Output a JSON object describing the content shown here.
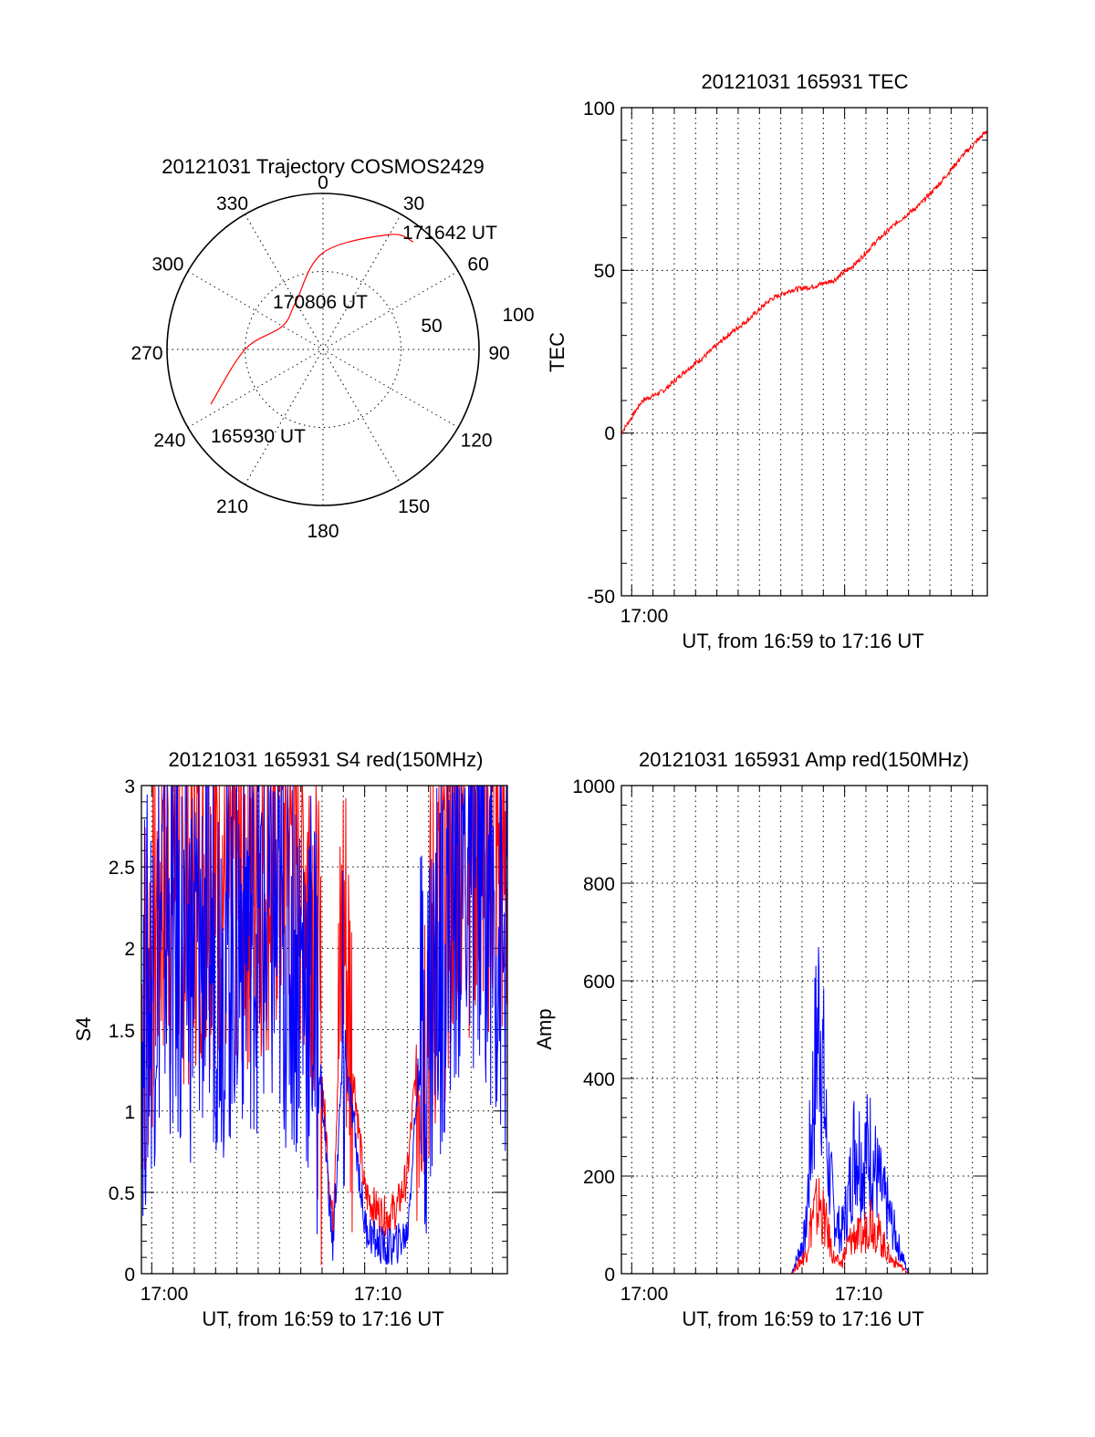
{
  "colors": {
    "red": "#ff0000",
    "blue": "#0000ff",
    "axis": "#000000"
  },
  "chart_data": [
    {
      "type": "polar",
      "title": "20121031 Trajectory COSMOS2429",
      "angle_labels": [
        "0",
        "30",
        "60",
        "90",
        "120",
        "150",
        "180",
        "210",
        "240",
        "270",
        "300",
        "330"
      ],
      "radius_labels": [
        "50",
        "100"
      ],
      "rlim": [
        0,
        100
      ],
      "annotations": [
        "171642 UT",
        "170806 UT",
        "165930 UT"
      ],
      "series": [
        {
          "color": "#ff0000",
          "points": [
            [
              244,
              80
            ],
            [
              270,
              50
            ],
            [
              300,
              30
            ],
            [
              330,
              35
            ],
            [
              0,
              62
            ],
            [
              30,
              85
            ],
            [
              40,
              90
            ]
          ]
        }
      ]
    },
    {
      "type": "line",
      "title": "20121031 165931 TEC",
      "xlabel": "UT, from 16:59 to 17:16 UT",
      "ylabel": "TEC",
      "xlim": [
        "16:59:31",
        "17:16:42"
      ],
      "ylim": [
        -50,
        100
      ],
      "yticks": [
        "100",
        "50",
        "0",
        "-50"
      ],
      "xticks": [
        "17:00"
      ],
      "grid": true,
      "series": [
        {
          "color": "#ff0000",
          "x": [
            "16:59:31",
            "17:00:30",
            "17:01:30",
            "17:02:30",
            "17:03:30",
            "17:04:30",
            "17:05:30",
            "17:06:30",
            "17:07:30",
            "17:08:30",
            "17:09:30",
            "17:10:30",
            "17:11:30",
            "17:12:30",
            "17:13:30",
            "17:14:30",
            "17:15:30",
            "17:16:42"
          ],
          "y": [
            0,
            10,
            13,
            19,
            24,
            30,
            35,
            41,
            44,
            45,
            47,
            52,
            59,
            65,
            70,
            77,
            85,
            93
          ]
        }
      ]
    },
    {
      "type": "line",
      "title": "20121031 165931 S4 red(150MHz)",
      "xlabel": "UT, from 16:59 to 17:16 UT",
      "ylabel": "S4",
      "xlim": [
        "16:59:31",
        "17:16:42"
      ],
      "ylim": [
        0,
        3
      ],
      "yticks": [
        "3",
        "2.5",
        "2",
        "1.5",
        "1",
        "0.5",
        "0"
      ],
      "xticks": [
        "17:00",
        "17:10"
      ],
      "grid": true,
      "series": [
        {
          "color": "#ff0000",
          "x": [
            "16:59:31",
            "17:00:30",
            "17:01:30",
            "17:02:30",
            "17:03:30",
            "17:04:30",
            "17:05:30",
            "17:06:30",
            "17:07:30",
            "17:08:00",
            "17:08:30",
            "17:09:00",
            "17:09:30",
            "17:10:00",
            "17:10:30",
            "17:11:00",
            "17:11:30",
            "17:12:00",
            "17:12:30",
            "17:13:30",
            "17:14:30",
            "17:15:30",
            "17:16:42"
          ],
          "y": [
            1.6,
            2.5,
            2.4,
            2.6,
            2.4,
            2.5,
            2.6,
            2.7,
            2.5,
            1.2,
            0.3,
            2.2,
            1.2,
            0.5,
            0.4,
            0.35,
            0.4,
            0.6,
            1.4,
            2.2,
            2.7,
            2.8,
            2.5
          ]
        },
        {
          "color": "#0000ff",
          "x": [
            "16:59:31",
            "17:00:30",
            "17:01:30",
            "17:02:30",
            "17:03:30",
            "17:04:30",
            "17:05:30",
            "17:06:30",
            "17:07:30",
            "17:08:00",
            "17:08:30",
            "17:09:00",
            "17:09:30",
            "17:10:00",
            "17:10:30",
            "17:11:00",
            "17:11:30",
            "17:12:00",
            "17:12:30",
            "17:13:30",
            "17:14:30",
            "17:15:30",
            "17:16:42"
          ],
          "y": [
            1.5,
            2.2,
            1.9,
            2.1,
            2.0,
            2.2,
            2.1,
            2.0,
            1.8,
            1.1,
            0.15,
            1.4,
            0.9,
            0.3,
            0.2,
            0.15,
            0.18,
            0.25,
            1.2,
            2.0,
            2.5,
            2.6,
            1.8
          ]
        }
      ]
    },
    {
      "type": "line",
      "title": "20121031 165931 Amp red(150MHz)",
      "xlabel": "UT, from 16:59 to 17:16 UT",
      "ylabel": "Amp",
      "xlim": [
        "16:59:31",
        "17:16:42"
      ],
      "ylim": [
        0,
        1000
      ],
      "yticks": [
        "1000",
        "800",
        "600",
        "400",
        "200",
        "0"
      ],
      "xticks": [
        "17:00",
        "17:10"
      ],
      "grid": true,
      "series": [
        {
          "color": "#0000ff",
          "x": [
            "16:59:31",
            "17:07:30",
            "17:08:10",
            "17:08:30",
            "17:08:50",
            "17:09:10",
            "17:09:30",
            "17:09:50",
            "17:10:10",
            "17:10:30",
            "17:10:50",
            "17:11:10",
            "17:11:30",
            "17:11:50",
            "17:12:10",
            "17:12:30",
            "17:13:00",
            "17:16:42"
          ],
          "y": [
            0,
            0,
            80,
            350,
            560,
            250,
            120,
            80,
            150,
            280,
            230,
            260,
            200,
            150,
            110,
            60,
            0,
            0
          ]
        },
        {
          "color": "#ff0000",
          "x": [
            "16:59:31",
            "17:07:30",
            "17:08:10",
            "17:08:30",
            "17:08:50",
            "17:09:10",
            "17:09:30",
            "17:09:50",
            "17:10:10",
            "17:10:30",
            "17:10:50",
            "17:11:10",
            "17:11:30",
            "17:11:50",
            "17:12:10",
            "17:12:30",
            "17:13:00",
            "17:16:42"
          ],
          "y": [
            0,
            0,
            40,
            120,
            140,
            90,
            30,
            20,
            60,
            80,
            70,
            120,
            90,
            60,
            30,
            20,
            0,
            0
          ]
        }
      ]
    }
  ]
}
